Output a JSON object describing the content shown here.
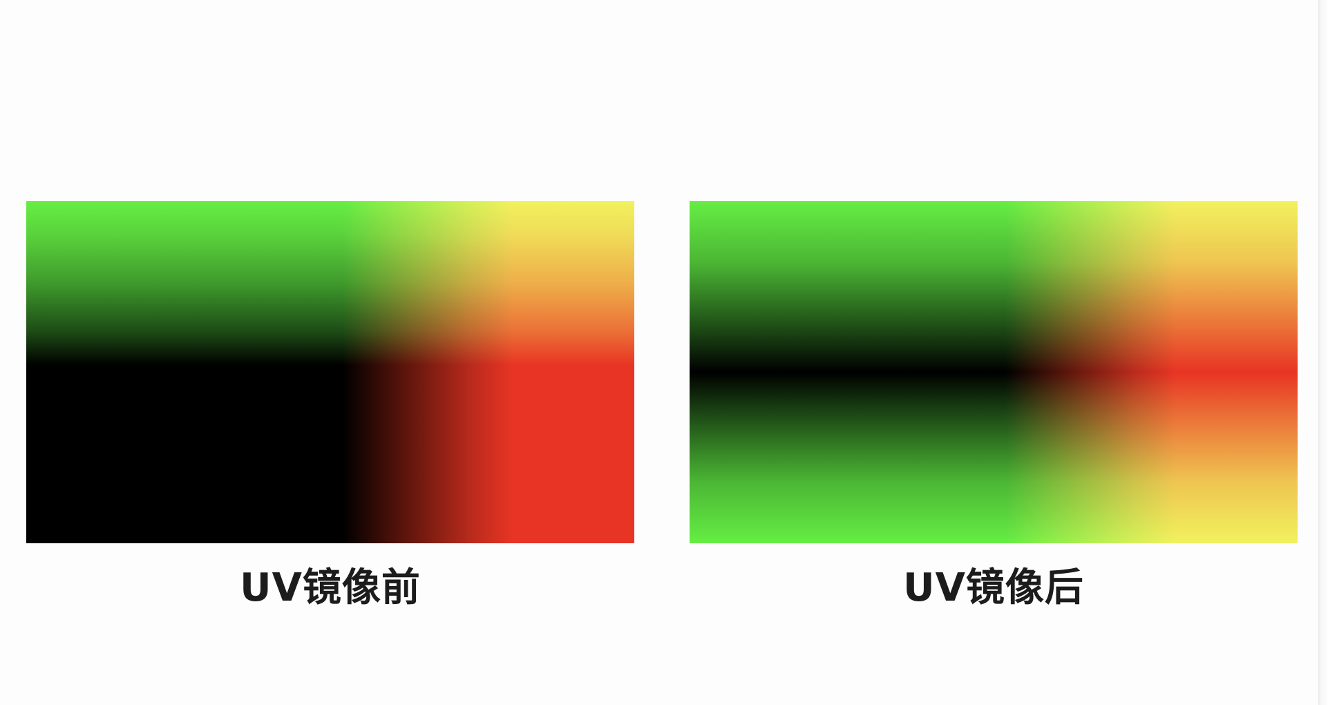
{
  "figures": [
    {
      "caption": "UV镜像前",
      "description_key": "before"
    },
    {
      "caption": "UV镜像后",
      "description_key": "after"
    }
  ],
  "colors": {
    "background": "#fdfdfd",
    "red_channel": "#e83424",
    "green_channel": "#66ee44",
    "caption_text": "#1c1c1c"
  }
}
